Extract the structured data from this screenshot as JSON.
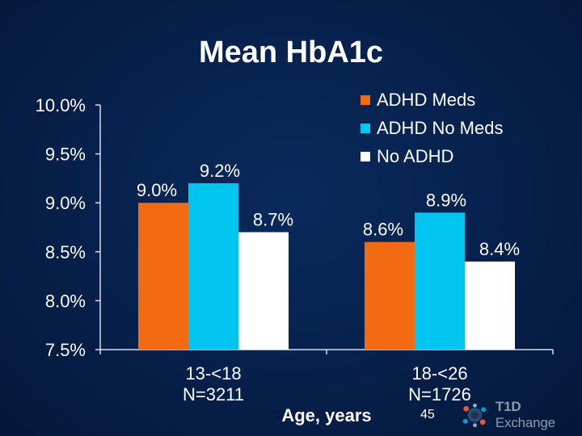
{
  "slide": {
    "title": "Mean HbA1c",
    "page_number": "45",
    "logo_text_bold": "T1D",
    "logo_text_rest": " Exchange"
  },
  "colors": {
    "adhd_meds": "#f26a11",
    "adhd_no_meds": "#00c5f0",
    "no_adhd": "#ffffff",
    "axis": "#d9dde6",
    "text": "#ffffff"
  },
  "chart_data": {
    "type": "bar",
    "title": "Mean HbA1c",
    "xlabel": "Age, years",
    "ylabel": "",
    "ylim": [
      7.5,
      10.0
    ],
    "yticks": [
      7.5,
      8.0,
      8.5,
      9.0,
      9.5,
      10.0
    ],
    "ytick_labels": [
      "7.5%",
      "8.0%",
      "8.5%",
      "9.0%",
      "9.5%",
      "10.0%"
    ],
    "categories": [
      {
        "label": "13-<18",
        "n_label": "N=3211"
      },
      {
        "label": "18-<26",
        "n_label": "N=1726"
      }
    ],
    "series": [
      {
        "name": "ADHD Meds",
        "color_key": "adhd_meds",
        "values": [
          9.0,
          8.6
        ],
        "labels": [
          "9.0%",
          "8.6%"
        ]
      },
      {
        "name": "ADHD No Meds",
        "color_key": "adhd_no_meds",
        "values": [
          9.2,
          8.9
        ],
        "labels": [
          "9.2%",
          "8.9%"
        ]
      },
      {
        "name": "No ADHD",
        "color_key": "no_adhd",
        "values": [
          8.7,
          8.4
        ],
        "labels": [
          "8.7%",
          "8.4%"
        ]
      }
    ],
    "legend_position": "top-right",
    "grid": false
  }
}
